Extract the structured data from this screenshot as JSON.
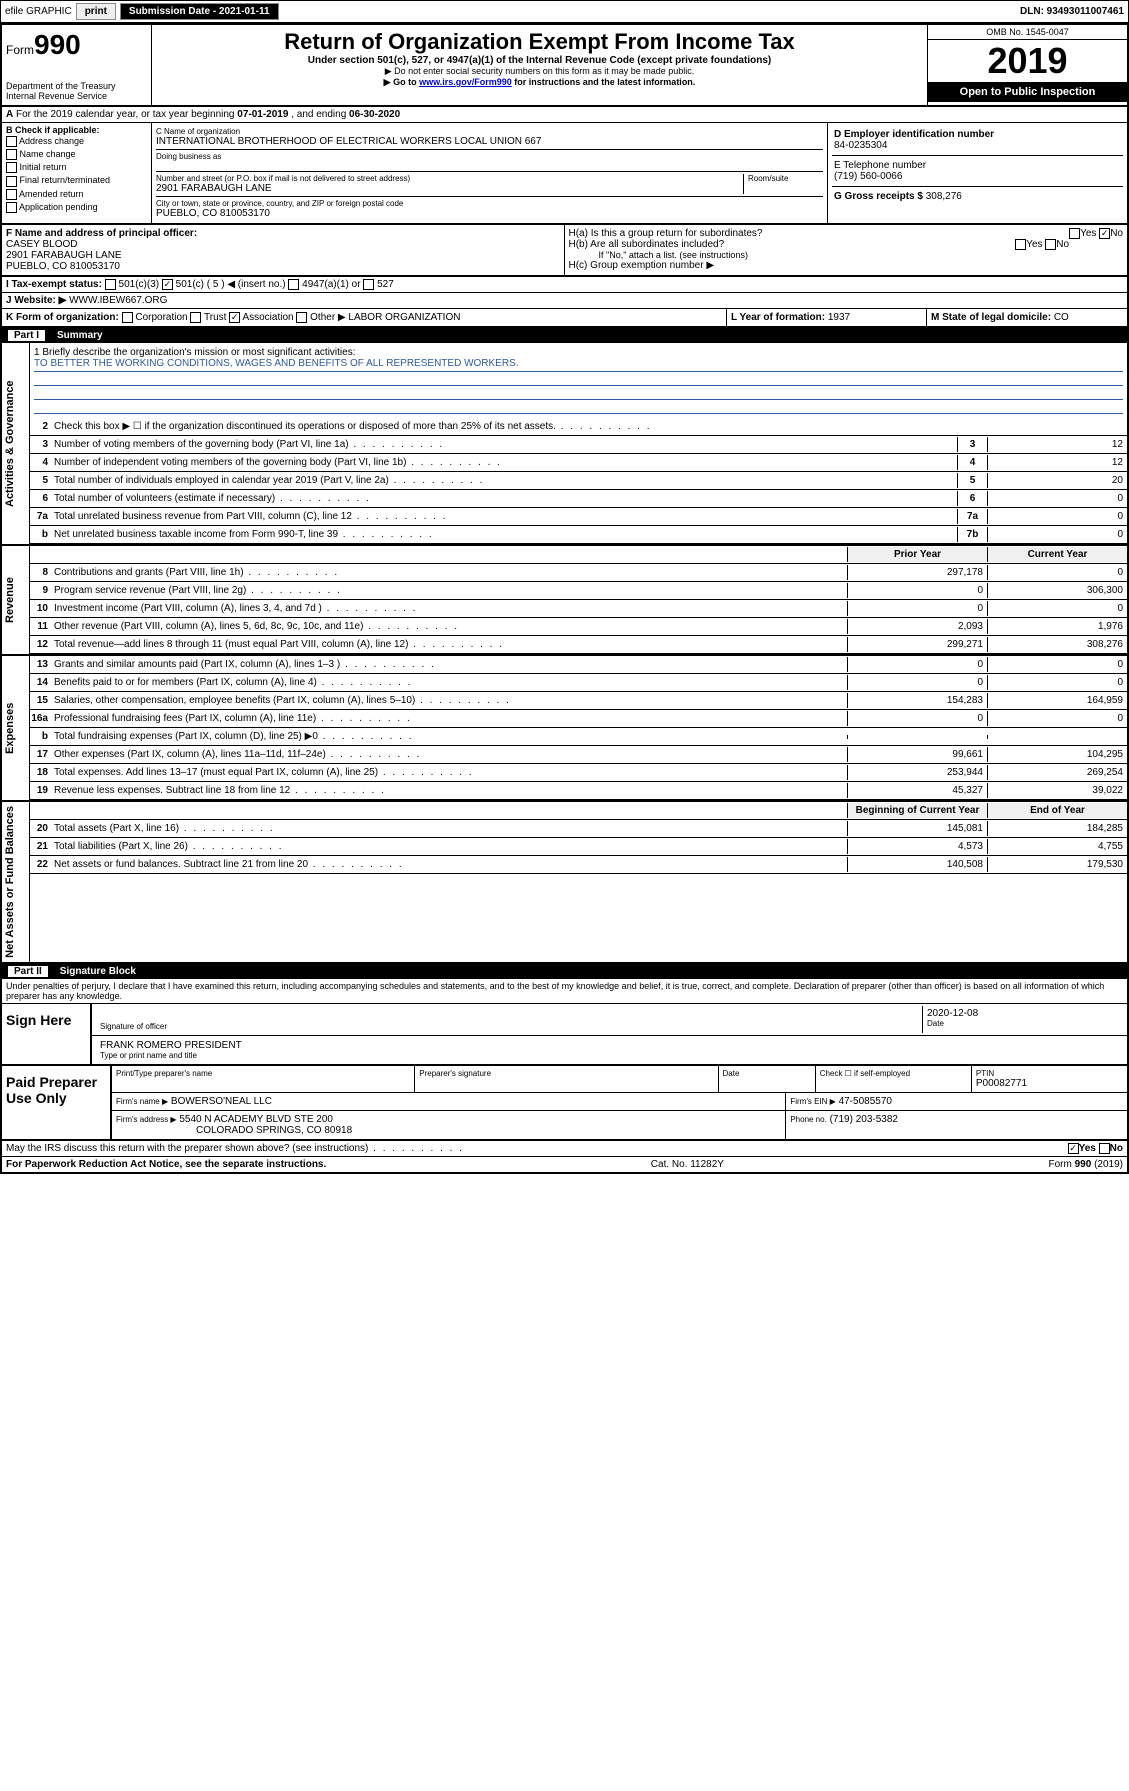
{
  "topbar": {
    "efile": "efile GRAPHIC",
    "print": "print",
    "subdate_label": "Submission Date - 2021-01-11",
    "dln": "DLN: 93493011007461"
  },
  "header": {
    "form_label": "Form",
    "form_num": "990",
    "dept": "Department of the Treasury\nInternal Revenue Service",
    "title": "Return of Organization Exempt From Income Tax",
    "subtitle": "Under section 501(c), 527, or 4947(a)(1) of the Internal Revenue Code (except private foundations)",
    "note1": "▶ Do not enter social security numbers on this form as it may be made public.",
    "note2_a": "▶ Go to ",
    "note2_link": "www.irs.gov/Form990",
    "note2_b": " for instructions and the latest information.",
    "omb": "OMB No. 1545-0047",
    "year": "2019",
    "inspection": "Open to Public Inspection"
  },
  "period": {
    "text_a": "For the 2019 calendar year, or tax year beginning ",
    "begin": "07-01-2019",
    "text_b": " , and ending ",
    "end": "06-30-2020"
  },
  "boxB": {
    "label": "B Check if applicable:",
    "items": [
      "Address change",
      "Name change",
      "Initial return",
      "Final return/terminated",
      "Amended return",
      "Application pending"
    ]
  },
  "boxC": {
    "name_label": "C Name of organization",
    "name": "INTERNATIONAL BROTHERHOOD OF ELECTRICAL WORKERS LOCAL UNION 667",
    "dba_label": "Doing business as",
    "addr_label": "Number and street (or P.O. box if mail is not delivered to street address)",
    "room_label": "Room/suite",
    "addr": "2901 FARABAUGH LANE",
    "city_label": "City or town, state or province, country, and ZIP or foreign postal code",
    "city": "PUEBLO, CO  810053170"
  },
  "boxD": {
    "label": "D Employer identification number",
    "value": "84-0235304"
  },
  "boxE": {
    "label": "E Telephone number",
    "value": "(719) 560-0066"
  },
  "boxG": {
    "label": "G Gross receipts $",
    "value": "308,276"
  },
  "boxF": {
    "label": "F  Name and address of principal officer:",
    "name": "CASEY BLOOD",
    "addr1": "2901 FARABAUGH LANE",
    "addr2": "PUEBLO, CO  810053170"
  },
  "boxH": {
    "a": "H(a)  Is this a group return for subordinates?",
    "b": "H(b)  Are all subordinates included?",
    "b_note": "If \"No,\" attach a list. (see instructions)",
    "c": "H(c)  Group exemption number ▶",
    "yes": "Yes",
    "no": "No"
  },
  "boxI": {
    "label": "I    Tax-exempt status:",
    "opts": [
      "501(c)(3)",
      "501(c) ( 5 ) ◀ (insert no.)",
      "4947(a)(1) or",
      "527"
    ],
    "checked_index": 1
  },
  "boxJ": {
    "label": "J    Website: ▶",
    "value": "WWW.IBEW667.ORG"
  },
  "boxK": {
    "label": "K Form of organization:",
    "opts": [
      "Corporation",
      "Trust",
      "Association",
      "Other ▶"
    ],
    "checked_index": 2,
    "other": "LABOR ORGANIZATION"
  },
  "boxL": {
    "label": "L Year of formation:",
    "value": "1937"
  },
  "boxM": {
    "label": "M State of legal domicile:",
    "value": "CO"
  },
  "part1": {
    "tag": "Part I",
    "title": "Summary"
  },
  "sections": {
    "gov": "Activities & Governance",
    "rev": "Revenue",
    "exp": "Expenses",
    "net": "Net Assets or Fund Balances"
  },
  "mission": {
    "q": "1  Briefly describe the organization's mission or most significant activities:",
    "text": "TO BETTER THE WORKING CONDITIONS, WAGES AND BENEFITS OF ALL REPRESENTED WORKERS."
  },
  "govlines": [
    {
      "n": "2",
      "t": "Check this box ▶ ☐  if the organization discontinued its operations or disposed of more than 25% of its net assets."
    },
    {
      "n": "3",
      "t": "Number of voting members of the governing body (Part VI, line 1a)",
      "b": "3",
      "v": "12"
    },
    {
      "n": "4",
      "t": "Number of independent voting members of the governing body (Part VI, line 1b)",
      "b": "4",
      "v": "12"
    },
    {
      "n": "5",
      "t": "Total number of individuals employed in calendar year 2019 (Part V, line 2a)",
      "b": "5",
      "v": "20"
    },
    {
      "n": "6",
      "t": "Total number of volunteers (estimate if necessary)",
      "b": "6",
      "v": "0"
    },
    {
      "n": "7a",
      "t": "Total unrelated business revenue from Part VIII, column (C), line 12",
      "b": "7a",
      "v": "0"
    },
    {
      "n": "b",
      "t": "Net unrelated business taxable income from Form 990-T, line 39",
      "b": "7b",
      "v": "0"
    }
  ],
  "cols": {
    "py": "Prior Year",
    "cy": "Current Year"
  },
  "revlines": [
    {
      "n": "8",
      "t": "Contributions and grants (Part VIII, line 1h)",
      "py": "297,178",
      "v": "0"
    },
    {
      "n": "9",
      "t": "Program service revenue (Part VIII, line 2g)",
      "py": "0",
      "v": "306,300"
    },
    {
      "n": "10",
      "t": "Investment income (Part VIII, column (A), lines 3, 4, and 7d )",
      "py": "0",
      "v": "0"
    },
    {
      "n": "11",
      "t": "Other revenue (Part VIII, column (A), lines 5, 6d, 8c, 9c, 10c, and 11e)",
      "py": "2,093",
      "v": "1,976"
    },
    {
      "n": "12",
      "t": "Total revenue—add lines 8 through 11 (must equal Part VIII, column (A), line 12)",
      "py": "299,271",
      "v": "308,276"
    }
  ],
  "explines": [
    {
      "n": "13",
      "t": "Grants and similar amounts paid (Part IX, column (A), lines 1–3 )",
      "py": "0",
      "v": "0"
    },
    {
      "n": "14",
      "t": "Benefits paid to or for members (Part IX, column (A), line 4)",
      "py": "0",
      "v": "0"
    },
    {
      "n": "15",
      "t": "Salaries, other compensation, employee benefits (Part IX, column (A), lines 5–10)",
      "py": "154,283",
      "v": "164,959"
    },
    {
      "n": "16a",
      "t": "Professional fundraising fees (Part IX, column (A), line 11e)",
      "py": "0",
      "v": "0"
    },
    {
      "n": "b",
      "t": "Total fundraising expenses (Part IX, column (D), line 25) ▶0",
      "py": "",
      "v": ""
    },
    {
      "n": "17",
      "t": "Other expenses (Part IX, column (A), lines 11a–11d, 11f–24e)",
      "py": "99,661",
      "v": "104,295"
    },
    {
      "n": "18",
      "t": "Total expenses. Add lines 13–17 (must equal Part IX, column (A), line 25)",
      "py": "253,944",
      "v": "269,254"
    },
    {
      "n": "19",
      "t": "Revenue less expenses. Subtract line 18 from line 12",
      "py": "45,327",
      "v": "39,022"
    }
  ],
  "netcols": {
    "py": "Beginning of Current Year",
    "cy": "End of Year"
  },
  "netlines": [
    {
      "n": "20",
      "t": "Total assets (Part X, line 16)",
      "py": "145,081",
      "v": "184,285"
    },
    {
      "n": "21",
      "t": "Total liabilities (Part X, line 26)",
      "py": "4,573",
      "v": "4,755"
    },
    {
      "n": "22",
      "t": "Net assets or fund balances. Subtract line 21 from line 20",
      "py": "140,508",
      "v": "179,530"
    }
  ],
  "part2": {
    "tag": "Part II",
    "title": "Signature Block"
  },
  "perjury": "Under penalties of perjury, I declare that I have examined this return, including accompanying schedules and statements, and to the best of my knowledge and belief, it is true, correct, and complete. Declaration of preparer (other than officer) is based on all information of which preparer has any knowledge.",
  "sign": {
    "here": "Sign Here",
    "sig_label": "Signature of officer",
    "date_label": "Date",
    "date": "2020-12-08",
    "name": "FRANK ROMERO  PRESIDENT",
    "name_label": "Type or print name and title"
  },
  "paid": {
    "label": "Paid Preparer Use Only",
    "h1": "Print/Type preparer's name",
    "h2": "Preparer's signature",
    "h3": "Date",
    "h4_a": "Check ☐ if self-employed",
    "h5": "PTIN",
    "ptin": "P00082771",
    "firm_label": "Firm's name    ▶",
    "firm": "BOWERSO'NEAL LLC",
    "ein_label": "Firm's EIN ▶",
    "ein": "47-5085570",
    "addr_label": "Firm's address ▶",
    "addr1": "5540 N ACADEMY BLVD STE 200",
    "addr2": "COLORADO SPRINGS, CO  80918",
    "phone_label": "Phone no.",
    "phone": "(719) 203-5382"
  },
  "discuss": {
    "q": "May the IRS discuss this return with the preparer shown above? (see instructions)",
    "yes": "Yes",
    "no": "No"
  },
  "footer": {
    "pra": "For Paperwork Reduction Act Notice, see the separate instructions.",
    "cat": "Cat. No. 11282Y",
    "form": "Form 990 (2019)"
  },
  "colors": {
    "link": "#0000cd",
    "mission_line": "#2c5aa0",
    "black": "#000000",
    "white": "#ffffff"
  }
}
